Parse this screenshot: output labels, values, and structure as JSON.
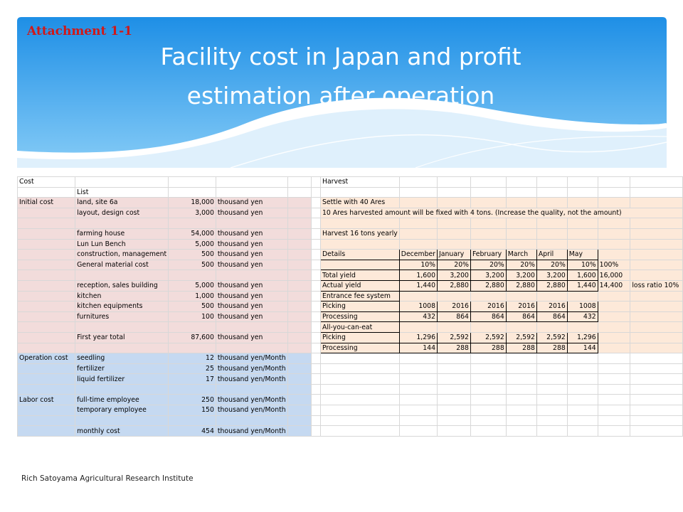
{
  "header": {
    "attachment": "Attachment 1-1",
    "title_line1": "Facility cost in Japan and profit",
    "title_line2": "estimation after operation",
    "colors": {
      "banner_top": "#1e8fe6",
      "banner_bottom": "#7cc6f5",
      "attachment_text": "#d01818"
    }
  },
  "sheet": {
    "colors": {
      "initial_cost": "#f2dcdb",
      "operation_cost": "#c5d9f1",
      "harvest": "#fde9d9"
    },
    "rows": [
      [
        "Cost",
        "",
        "",
        "",
        "",
        "",
        "Harvest",
        "",
        "",
        "",
        "",
        "",
        "",
        "",
        ""
      ],
      [
        "",
        "List",
        "",
        "",
        "",
        "",
        "",
        "",
        "",
        "",
        "",
        "",
        "",
        "",
        ""
      ],
      [
        "Initial cost",
        "land, site 6a",
        "18,000",
        "thousand yen",
        "",
        "",
        "Settle with 40 Ares",
        "",
        "",
        "",
        "",
        "",
        "",
        "",
        ""
      ],
      [
        "",
        "layout, design cost",
        "3,000",
        "thousand yen",
        "",
        "",
        "10 Ares harvested amount will be fixed with 4 tons. (Increase the quality, not the amount)",
        "",
        "",
        "",
        "",
        "",
        "",
        "",
        ""
      ],
      [
        "",
        "",
        "",
        "",
        "",
        "",
        "",
        "",
        "",
        "",
        "",
        "",
        "",
        "",
        ""
      ],
      [
        "",
        "farming house",
        "54,000",
        "thousand yen",
        "",
        "",
        "Harvest 16 tons yearly",
        "",
        "",
        "",
        "",
        "",
        "",
        "",
        ""
      ],
      [
        "",
        "Lun Lun Bench",
        "5,000",
        "thousand yen",
        "",
        "",
        "",
        "",
        "",
        "",
        "",
        "",
        "",
        "",
        ""
      ],
      [
        "",
        "construction, management",
        "500",
        "thousand yen",
        "",
        "",
        "Details",
        "December",
        "January",
        "February",
        "March",
        "April",
        "May",
        "",
        ""
      ],
      [
        "",
        "General material cost",
        "500",
        "thousand yen",
        "",
        "",
        "",
        "10%",
        "20%",
        "20%",
        "20%",
        "20%",
        "10%",
        "100%",
        ""
      ],
      [
        "",
        "",
        "",
        "",
        "",
        "",
        "Total yield",
        "1,600",
        "3,200",
        "3,200",
        "3,200",
        "3,200",
        "1,600",
        "16,000",
        ""
      ],
      [
        "",
        "reception, sales building",
        "5,000",
        "thousand yen",
        "",
        "",
        "Actual yield",
        "1,440",
        "2,880",
        "2,880",
        "2,880",
        "2,880",
        "1,440",
        "14,400",
        "loss ratio 10%"
      ],
      [
        "",
        "kitchen",
        "1,000",
        "thousand yen",
        "",
        "",
        "Entrance fee system",
        "",
        "",
        "",
        "",
        "",
        "",
        "",
        ""
      ],
      [
        "",
        "kitchen equipments",
        "500",
        "thousand yen",
        "",
        "",
        "Picking",
        "1008",
        "2016",
        "2016",
        "2016",
        "2016",
        "1008",
        "",
        ""
      ],
      [
        "",
        "furnitures",
        "100",
        "thousand yen",
        "",
        "",
        "Processing",
        "432",
        "864",
        "864",
        "864",
        "864",
        "432",
        "",
        ""
      ],
      [
        "",
        "",
        "",
        "",
        "",
        "",
        "All-you-can-eat",
        "",
        "",
        "",
        "",
        "",
        "",
        "",
        ""
      ],
      [
        "",
        "First year total",
        "87,600",
        "thousand yen",
        "",
        "",
        "Picking",
        "1,296",
        "2,592",
        "2,592",
        "2,592",
        "2,592",
        "1,296",
        "",
        ""
      ],
      [
        "",
        "",
        "",
        "",
        "",
        "",
        "Processing",
        "144",
        "288",
        "288",
        "288",
        "288",
        "144",
        "",
        ""
      ],
      [
        "Operation cost",
        "seedling",
        "12",
        "thousand yen/Month",
        "",
        "",
        "",
        "",
        "",
        "",
        "",
        "",
        "",
        "",
        ""
      ],
      [
        "",
        "fertilizer",
        "25",
        "thousand yen/Month",
        "",
        "",
        "",
        "",
        "",
        "",
        "",
        "",
        "",
        "",
        ""
      ],
      [
        "",
        "liquid fertilizer",
        "17",
        "thousand yen/Month",
        "",
        "",
        "",
        "",
        "",
        "",
        "",
        "",
        "",
        "",
        ""
      ],
      [
        "",
        "",
        "",
        "",
        "",
        "",
        "",
        "",
        "",
        "",
        "",
        "",
        "",
        "",
        ""
      ],
      [
        "Labor cost",
        "full-time employee",
        "250",
        "thousand yen/Month",
        "",
        "",
        "",
        "",
        "",
        "",
        "",
        "",
        "",
        "",
        ""
      ],
      [
        "",
        "temporary employee",
        "150",
        "thousand yen/Month",
        "",
        "",
        "",
        "",
        "",
        "",
        "",
        "",
        "",
        "",
        ""
      ],
      [
        "",
        "",
        "",
        "",
        "",
        "",
        "",
        "",
        "",
        "",
        "",
        "",
        "",
        "",
        ""
      ],
      [
        "",
        "monthly cost",
        "454",
        "thousand yen/Month",
        "",
        "",
        "",
        "",
        "",
        "",
        "",
        "",
        "",
        "",
        ""
      ]
    ]
  },
  "footer": {
    "text": "Rich Satoyama Agricultural Research Institute"
  }
}
